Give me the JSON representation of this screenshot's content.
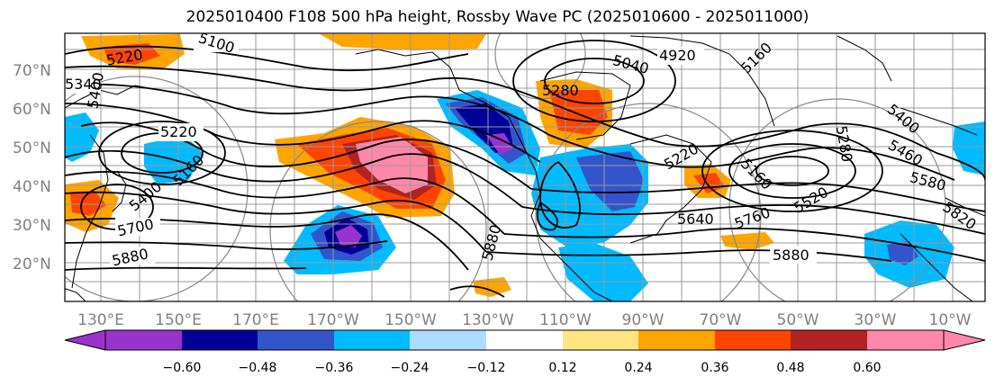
{
  "title": "2025010400 F108 500 hPa height, Rossby Wave PC (2025010600 - 2025011000)",
  "map": {
    "lat_ticks": [
      "70°N",
      "60°N",
      "50°N",
      "40°N",
      "30°N",
      "20°N"
    ],
    "lon_ticks": [
      "130°E",
      "150°E",
      "170°E",
      "170°W",
      "150°W",
      "130°W",
      "110°W",
      "90°W",
      "70°W",
      "50°W",
      "30°W",
      "10°W"
    ],
    "height_contour_labels": [
      "5100",
      "5220",
      "5340",
      "5400",
      "5220",
      "5160",
      "5400",
      "5700",
      "5880",
      "5880",
      "5280",
      "5220",
      "5160",
      "5280",
      "5400",
      "5460",
      "5580",
      "5640",
      "5760",
      "5880",
      "5520",
      "4920",
      "5040",
      "5160",
      "5820"
    ]
  },
  "colorbar": {
    "tick_labels": [
      "−0.60",
      "−0.48",
      "−0.36",
      "−0.24",
      "−0.12",
      "0.12",
      "0.24",
      "0.36",
      "0.48",
      "0.60"
    ],
    "colors": [
      "#9933cc",
      "#000099",
      "#3355cc",
      "#00bbff",
      "#aaddff",
      "#ffffff",
      "#ffe680",
      "#ffa500",
      "#ff4400",
      "#b22222",
      "#ff88aa"
    ]
  }
}
